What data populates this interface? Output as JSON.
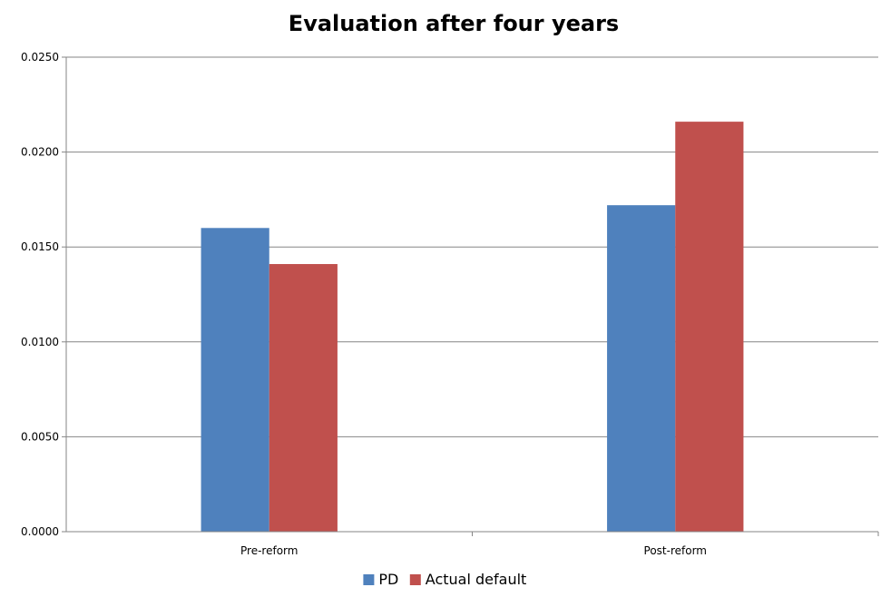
{
  "chart_data": {
    "type": "bar",
    "title": "Evaluation after four years",
    "categories": [
      "Pre-reform",
      "Post-reform"
    ],
    "series": [
      {
        "name": "PD",
        "values": [
          0.016,
          0.0172
        ],
        "color": "#4f81bd"
      },
      {
        "name": "Actual default",
        "values": [
          0.0141,
          0.0216
        ],
        "color": "#c0504d"
      }
    ],
    "ylim": [
      0,
      0.025
    ],
    "yticks": [
      "0.0000",
      "0.0050",
      "0.0100",
      "0.0150",
      "0.0200",
      "0.0250"
    ],
    "grid": true,
    "legend_position": "bottom"
  }
}
